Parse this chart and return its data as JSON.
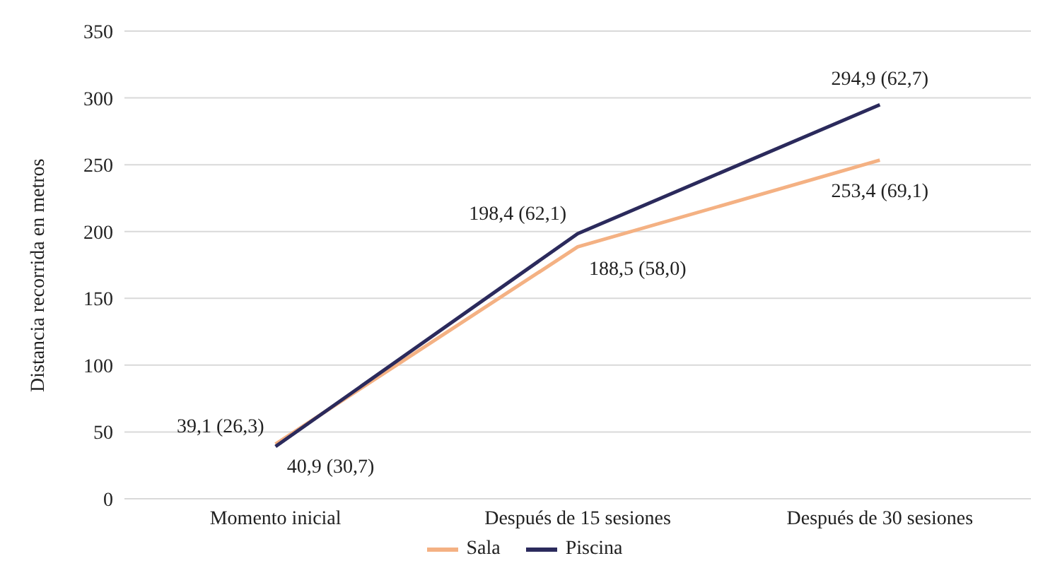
{
  "chart_data": {
    "type": "line",
    "ylabel": "Distancia recorrida en metros",
    "categories": [
      "Momento inicial",
      "Después de 15 sesiones",
      "Después de 30 sesiones"
    ],
    "series": [
      {
        "name": "Sala",
        "color": "#f4b183",
        "values": [
          40.9,
          188.5,
          253.4
        ],
        "value_labels": [
          "40,9 (30,7)",
          "188,5 (58,0)",
          "253,4 (69,1)"
        ]
      },
      {
        "name": "Piscina",
        "color": "#2b2a5c",
        "values": [
          39.1,
          198.4,
          294.9
        ],
        "value_labels": [
          "39,1 (26,3)",
          "198,4 (62,1)",
          "294,9 (62,7)"
        ]
      }
    ],
    "ylim": [
      0,
      350
    ],
    "yticks": [
      0,
      50,
      100,
      150,
      200,
      250,
      300,
      350
    ],
    "grid": "y",
    "legend": "bottom",
    "marker": "none",
    "line_style": "solid"
  }
}
